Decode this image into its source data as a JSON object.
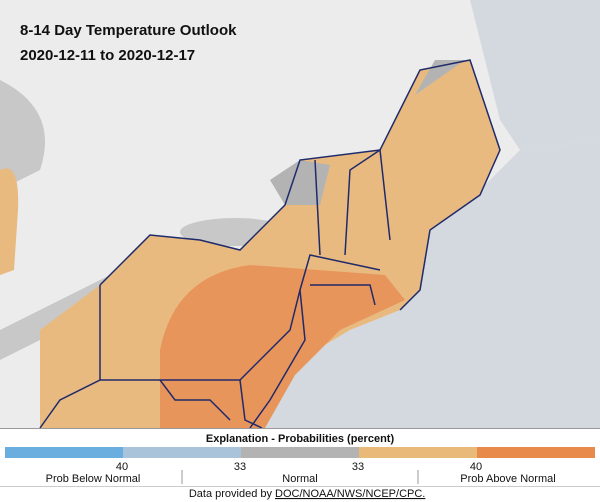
{
  "header": {
    "title": "8-14 Day Temperature Outlook",
    "dates": "2020-12-11 to 2020-12-17"
  },
  "legend": {
    "title": "Explanation - Probabilities (percent)",
    "ticks": [
      "40",
      "33",
      "33",
      "40"
    ],
    "categories": [
      "Prob Below Normal",
      "Normal",
      "Prob Above Normal"
    ]
  },
  "footer": {
    "prefix": "Data provided by",
    "link": "DOC/NOAA/NWS/NCEP/CPC."
  }
}
